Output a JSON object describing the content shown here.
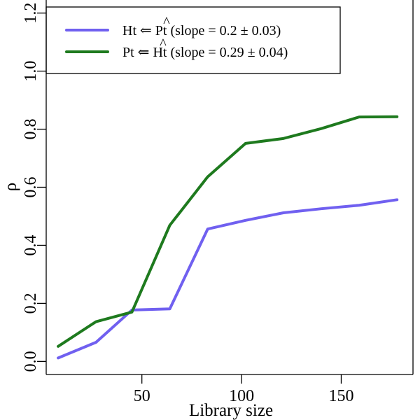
{
  "chart_data": {
    "type": "line",
    "xlabel": "Library size",
    "ylabel": "ρ",
    "xlim": [
      2,
      186
    ],
    "ylim": [
      -0.045,
      1.245
    ],
    "x_ticks": [
      50,
      100,
      150
    ],
    "x_tick_labels": [
      "50",
      "100",
      "150"
    ],
    "y_ticks": [
      0.0,
      0.2,
      0.4,
      0.6,
      0.8,
      1.0,
      1.2
    ],
    "y_tick_labels": [
      "0.0",
      "0.2",
      "0.4",
      "0.6",
      "0.8",
      "1.0",
      "1.2"
    ],
    "grid": false,
    "legend_position": "top-left",
    "series": [
      {
        "name": "Ht ⇐ P̂t (slope = 0.2 ± 0.03)",
        "legend_parts": [
          "Ht ⇐ ",
          "P",
          "t (slope = 0.2 ± 0.03)"
        ],
        "color": "#7060F0",
        "x": [
          8,
          27,
          45,
          64,
          83,
          102,
          121,
          140,
          159,
          178
        ],
        "y": [
          0.012,
          0.066,
          0.177,
          0.181,
          0.456,
          0.486,
          0.512,
          0.526,
          0.538,
          0.557
        ]
      },
      {
        "name": "Pt ⇐ Ĥt (slope = 0.29 ± 0.04)",
        "legend_parts": [
          "Pt ⇐ ",
          "H",
          "t (slope = 0.29 ± 0.04)"
        ],
        "color": "#1E7A1E",
        "x": [
          8,
          27,
          45,
          64,
          83,
          102,
          121,
          140,
          159,
          178
        ],
        "y": [
          0.052,
          0.137,
          0.17,
          0.469,
          0.636,
          0.751,
          0.768,
          0.802,
          0.842,
          0.843
        ]
      }
    ]
  }
}
